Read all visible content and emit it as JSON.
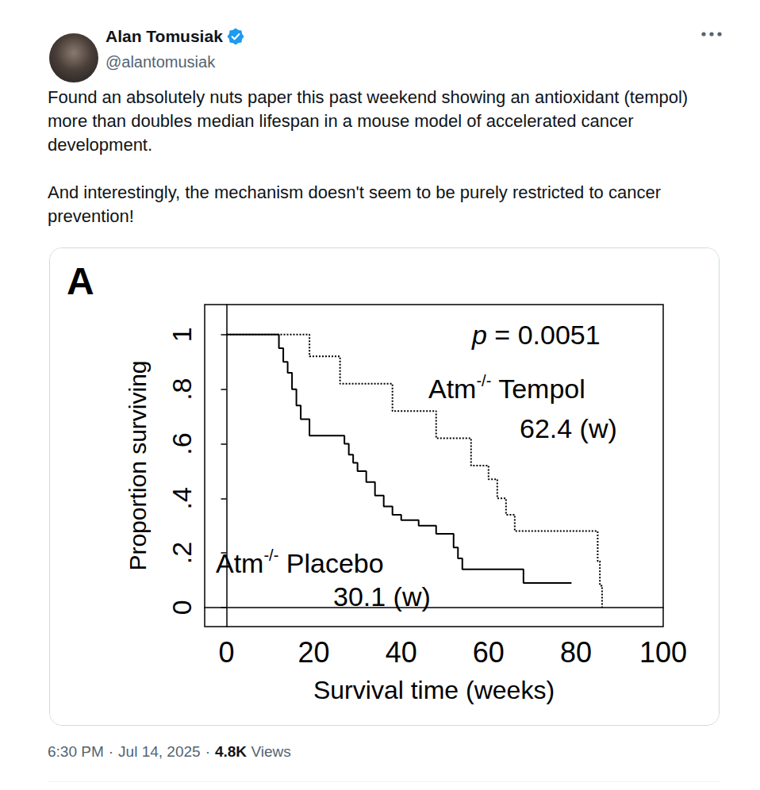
{
  "post": {
    "author": {
      "name": "Alan Tomusiak",
      "handle": "@alantomusiak",
      "verified": true
    },
    "text": [
      "Found an absolutely nuts paper this past weekend showing an antioxidant (tempol) more than doubles median lifespan in a mouse model of accelerated cancer development.",
      "And interestingly, the mechanism doesn't seem to be purely restricted to cancer prevention!"
    ],
    "footer": {
      "time": "6:30 PM",
      "separator": "·",
      "date": "Jul 14, 2025",
      "views": "4.8K",
      "views_label": "Views"
    }
  },
  "chart_data": {
    "type": "step",
    "panel": "A",
    "x_label": "Survival time (weeks)",
    "y_label": "Proportion surviving",
    "xlim": [
      -5,
      100
    ],
    "xticks": [
      0,
      20,
      40,
      60,
      80,
      100
    ],
    "ylim": [
      -0.07,
      1.11
    ],
    "yticks": [
      0,
      {
        "value": 0.2,
        "label": ".2"
      },
      {
        "value": 0.4,
        "label": ".4"
      },
      {
        "value": 0.6,
        "label": ".6"
      },
      {
        "value": 0.8,
        "label": ".8"
      },
      1
    ],
    "grid": false,
    "gene": "Atm",
    "genotype": "-/-",
    "p_value": {
      "symbol": "p",
      "text": " = 0.0051"
    },
    "series": [
      {
        "name": "Placebo",
        "color": "#000000",
        "line_style": "solid",
        "median_label": "30.1 (w)",
        "x": [
          0,
          12,
          13,
          14,
          15,
          16,
          17,
          19,
          27,
          28,
          29,
          30,
          32,
          34,
          36,
          38,
          40,
          44,
          48,
          52,
          53,
          54,
          68,
          79
        ],
        "values": [
          1,
          0.95,
          0.9,
          0.86,
          0.8,
          0.74,
          0.69,
          0.63,
          0.6,
          0.56,
          0.53,
          0.5,
          0.46,
          0.41,
          0.37,
          0.34,
          0.32,
          0.3,
          0.27,
          0.22,
          0.18,
          0.14,
          0.09,
          0.09
        ]
      },
      {
        "name": "Tempol",
        "color": "#000000",
        "line_style": "dotted",
        "median_label": "62.4 (w)",
        "x": [
          0,
          19,
          26,
          38,
          48,
          56,
          60,
          62,
          64,
          66,
          85,
          85.5,
          86
        ],
        "values": [
          1,
          0.92,
          0.82,
          0.72,
          0.62,
          0.52,
          0.47,
          0.4,
          0.34,
          0.28,
          0.17,
          0.08,
          0
        ]
      }
    ]
  }
}
